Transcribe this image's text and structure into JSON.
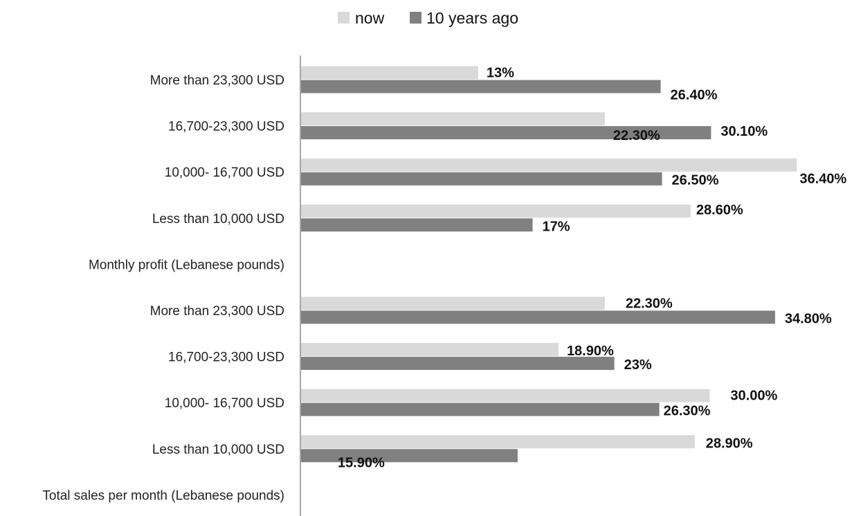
{
  "chart_data": {
    "type": "bar",
    "orientation": "horizontal",
    "categories": [
      "More than 23,300 USD",
      "16,700-23,300 USD",
      "10,000- 16,700 USD",
      "Less than 10,000 USD",
      "Monthly profit (Lebanese pounds)",
      "More than 23,300 USD",
      "16,700-23,300 USD",
      "10,000- 16,700 USD",
      "Less than 10,000 USD",
      "Total sales per month (Lebanese pounds)"
    ],
    "series": [
      {
        "name": "now",
        "color": "#d9d9d9",
        "values": [
          13,
          22.3,
          36.4,
          28.6,
          null,
          22.3,
          18.9,
          30.0,
          28.9,
          null
        ],
        "labels": [
          "13%",
          "22.30%",
          "36.40%",
          "28.60%",
          "",
          "22.30%",
          "18.90%",
          "30.00%",
          "28.90%",
          ""
        ]
      },
      {
        "name": "10 years ago",
        "color": "#808080",
        "values": [
          26.4,
          30.1,
          26.5,
          17,
          null,
          34.8,
          23,
          26.3,
          15.9,
          null
        ],
        "labels": [
          "26.40%",
          "30.10%",
          "26.50%",
          "17%",
          "",
          "34.80%",
          "23%",
          "26.30%",
          "15.90%",
          ""
        ]
      }
    ],
    "title": "",
    "xlabel": "",
    "ylabel": "",
    "xlim": [
      0,
      37
    ],
    "grid": false,
    "legend_position": "top"
  }
}
